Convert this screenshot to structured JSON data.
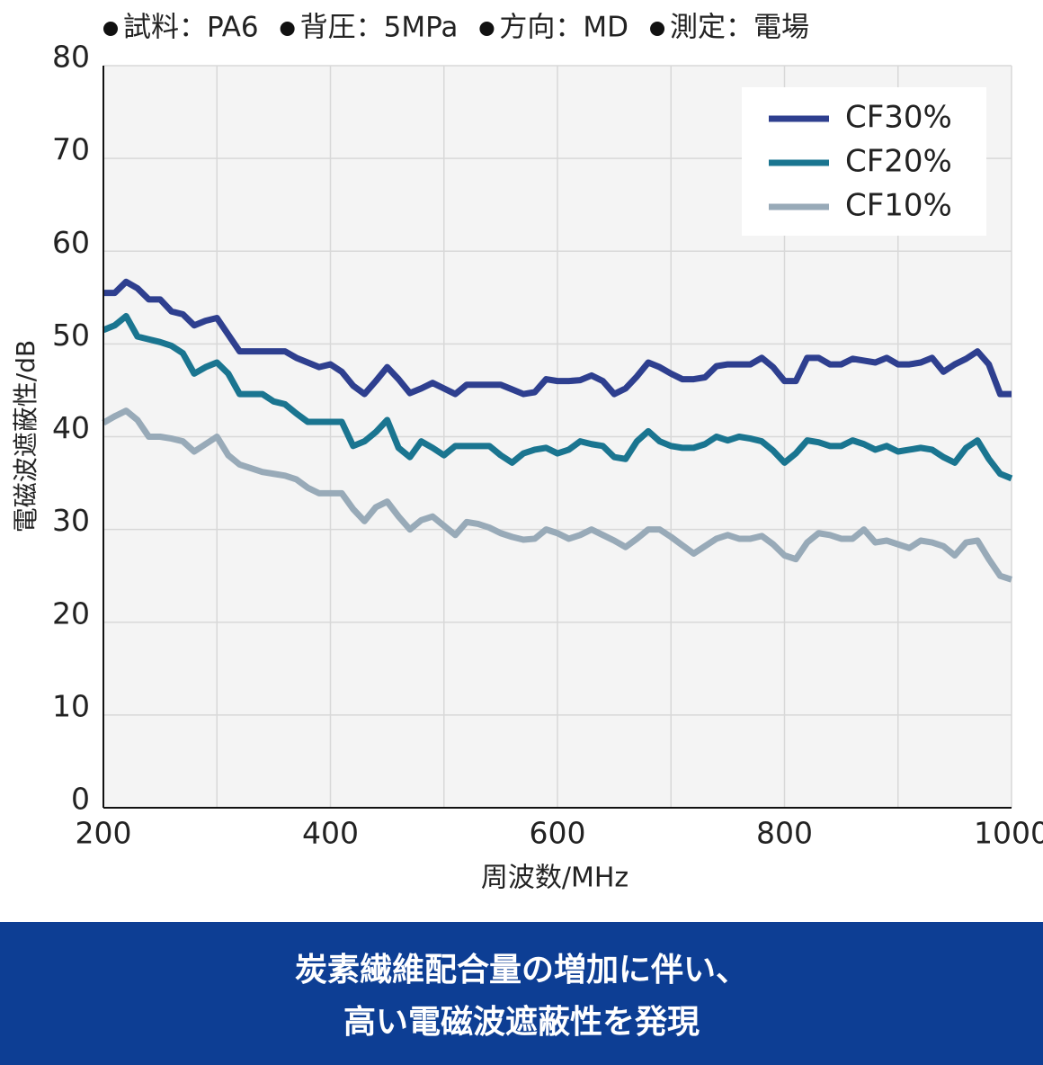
{
  "chart_data": {
    "type": "line",
    "conditions": [
      "試料：PA6",
      "背圧：5MPa",
      "方向：MD",
      "測定：電場"
    ],
    "xlabel": "周波数/MHz",
    "ylabel": "電磁波遮蔽性/dB",
    "xlim": [
      200,
      1000
    ],
    "ylim": [
      0,
      80
    ],
    "xticks": [
      200,
      400,
      600,
      800,
      1000
    ],
    "xgrid": [
      200,
      300,
      400,
      500,
      600,
      700,
      800,
      900,
      1000
    ],
    "yticks": [
      0,
      10,
      20,
      30,
      40,
      50,
      60,
      70,
      80
    ],
    "grid": true,
    "legend": "upper right",
    "x": [
      200,
      210,
      220,
      230,
      240,
      250,
      260,
      270,
      280,
      290,
      300,
      310,
      320,
      330,
      340,
      350,
      360,
      370,
      380,
      390,
      400,
      410,
      420,
      430,
      440,
      450,
      460,
      470,
      480,
      490,
      500,
      510,
      520,
      530,
      540,
      550,
      560,
      570,
      580,
      590,
      600,
      610,
      620,
      630,
      640,
      650,
      660,
      670,
      680,
      690,
      700,
      710,
      720,
      730,
      740,
      750,
      760,
      770,
      780,
      790,
      800,
      810,
      820,
      830,
      840,
      850,
      860,
      870,
      880,
      890,
      900,
      910,
      920,
      930,
      940,
      950,
      960,
      970,
      980,
      990,
      1000
    ],
    "series": [
      {
        "name": "CF30%",
        "color": "#2e3f8f",
        "values": [
          55.5,
          55.5,
          56.7,
          56.0,
          54.8,
          54.8,
          53.5,
          53.2,
          52.0,
          52.5,
          52.8,
          51.0,
          49.2,
          49.2,
          49.2,
          49.2,
          49.2,
          48.5,
          48.0,
          47.5,
          47.8,
          47.0,
          45.5,
          44.6,
          46.0,
          47.5,
          46.2,
          44.7,
          45.2,
          45.8,
          45.2,
          44.6,
          45.6,
          45.6,
          45.6,
          45.6,
          45.1,
          44.6,
          44.8,
          46.2,
          46.0,
          46.0,
          46.1,
          46.6,
          46.0,
          44.6,
          45.2,
          46.5,
          48.0,
          47.5,
          46.8,
          46.2,
          46.2,
          46.4,
          47.6,
          47.8,
          47.8,
          47.8,
          48.5,
          47.5,
          46.0,
          46.0,
          48.5,
          48.5,
          47.8,
          47.8,
          48.4,
          48.2,
          48.0,
          48.5,
          47.8,
          47.8,
          48.0,
          48.5,
          47.0,
          47.8,
          48.4,
          49.2,
          47.8,
          44.6,
          44.6
        ]
      },
      {
        "name": "CF20%",
        "color": "#1a7590",
        "values": [
          51.5,
          52.0,
          53.0,
          50.8,
          50.5,
          50.2,
          49.8,
          49.0,
          46.8,
          47.5,
          48.0,
          46.8,
          44.6,
          44.6,
          44.6,
          43.8,
          43.5,
          42.5,
          41.6,
          41.6,
          41.6,
          41.6,
          39.0,
          39.5,
          40.5,
          41.8,
          38.8,
          37.8,
          39.5,
          38.8,
          38.0,
          39.0,
          39.0,
          39.0,
          39.0,
          38.0,
          37.2,
          38.2,
          38.6,
          38.8,
          38.2,
          38.6,
          39.5,
          39.2,
          39.0,
          37.8,
          37.6,
          39.5,
          40.6,
          39.5,
          39.0,
          38.8,
          38.8,
          39.2,
          40.0,
          39.6,
          40.0,
          39.8,
          39.5,
          38.5,
          37.2,
          38.2,
          39.6,
          39.4,
          39.0,
          39.0,
          39.6,
          39.2,
          38.6,
          39.0,
          38.4,
          38.6,
          38.8,
          38.6,
          37.8,
          37.2,
          38.8,
          39.6,
          37.6,
          36.0,
          35.5
        ]
      },
      {
        "name": "CF10%",
        "color": "#98aab8",
        "values": [
          41.5,
          42.2,
          42.8,
          41.8,
          40.0,
          40.0,
          39.8,
          39.5,
          38.4,
          39.2,
          40.0,
          38.0,
          37.0,
          36.6,
          36.2,
          36.0,
          35.8,
          35.4,
          34.5,
          33.9,
          33.9,
          33.9,
          32.2,
          30.9,
          32.4,
          33.0,
          31.4,
          30.0,
          31.0,
          31.4,
          30.4,
          29.4,
          30.8,
          30.6,
          30.2,
          29.6,
          29.2,
          28.9,
          29.0,
          30.0,
          29.6,
          29.0,
          29.4,
          30.0,
          29.4,
          28.8,
          28.1,
          29.0,
          30.0,
          30.0,
          29.2,
          28.3,
          27.4,
          28.2,
          29.0,
          29.4,
          29.0,
          29.0,
          29.3,
          28.4,
          27.2,
          26.8,
          28.6,
          29.6,
          29.4,
          29.0,
          29.0,
          30.0,
          28.6,
          28.8,
          28.4,
          28.0,
          28.8,
          28.6,
          28.2,
          27.2,
          28.6,
          28.8,
          26.8,
          25.0,
          24.6
        ]
      }
    ],
    "caption": [
      "炭素繊維配合量の増加に伴い、",
      "高い電磁波遮蔽性を発現"
    ]
  }
}
